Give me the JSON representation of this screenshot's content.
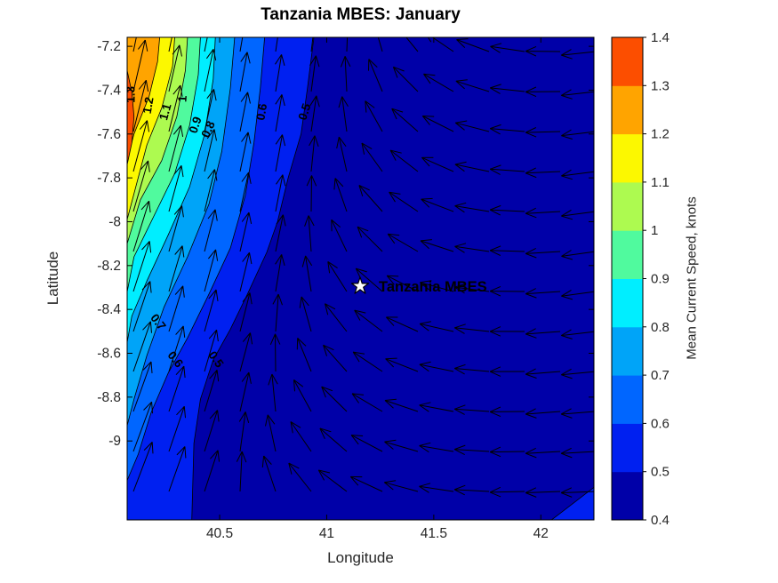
{
  "title": "Tanzania MBES: January",
  "axes": {
    "xlabel": "Longitude",
    "ylabel": "Latitude",
    "xlim": [
      40.068,
      42.248
    ],
    "ylim": [
      -9.36,
      -7.159
    ],
    "x_ticks": [
      {
        "value": 40.5,
        "label": "40.5"
      },
      {
        "value": 41,
        "label": "41"
      },
      {
        "value": 41.5,
        "label": "41.5"
      },
      {
        "value": 42,
        "label": "42"
      }
    ],
    "y_ticks": [
      {
        "value": -7.2,
        "label": "-7.2"
      },
      {
        "value": -7.4,
        "label": "-7.4"
      },
      {
        "value": -7.6,
        "label": "-7.6"
      },
      {
        "value": -7.8,
        "label": "-7.8"
      },
      {
        "value": -8,
        "label": "-8"
      },
      {
        "value": -8.2,
        "label": "-8.2"
      },
      {
        "value": -8.4,
        "label": "-8.4"
      },
      {
        "value": -8.6,
        "label": "-8.6"
      },
      {
        "value": -8.8,
        "label": "-8.8"
      },
      {
        "value": -9,
        "label": "-9"
      }
    ]
  },
  "colorbar": {
    "label": "Mean Current Speed, knots",
    "min": 0.4,
    "max": 1.4,
    "tick_labels": [
      "0.4",
      "0.5",
      "0.6",
      "0.7",
      "0.8",
      "0.9",
      "1",
      "1.1",
      "1.2",
      "1.3",
      "1.4"
    ],
    "band_colors": [
      "#0000A8",
      "#0020F0",
      "#0066FF",
      "#00A4F8",
      "#00EEFF",
      "#50FA9E",
      "#ADFA50",
      "#FCF800",
      "#FFA400",
      "#FC4E00"
    ]
  },
  "station": {
    "label": "Tanzania MBES",
    "lon": 41.156,
    "lat": -8.294
  },
  "chart_data": {
    "type": "filled_contour_with_quiver",
    "variable": "Mean Current Speed, knots",
    "month": "January",
    "base_level": 0.4,
    "base_color": "#0000A8",
    "bands": [
      {
        "level": 0.5,
        "color": "#0020F0",
        "line": [
          [
            40.94,
            -7.16
          ],
          [
            40.91,
            -7.39
          ],
          [
            40.88,
            -7.6
          ],
          [
            40.82,
            -7.8
          ],
          [
            40.77,
            -8.0
          ],
          [
            40.72,
            -8.14
          ],
          [
            40.63,
            -8.33
          ],
          [
            40.55,
            -8.49
          ],
          [
            40.47,
            -8.63
          ],
          [
            40.41,
            -8.81
          ],
          [
            40.38,
            -9.01
          ],
          [
            40.37,
            -9.36
          ]
        ],
        "close": [
          [
            40.068,
            -9.36
          ],
          [
            40.068,
            -7.159
          ]
        ]
      },
      {
        "level": 0.5,
        "color": "#0020F0",
        "line": [
          [
            42.05,
            -9.36
          ],
          [
            42.25,
            -9.21
          ]
        ],
        "close": [
          [
            42.25,
            -9.36
          ]
        ]
      },
      {
        "level": 0.6,
        "color": "#0066FF",
        "line": [
          [
            40.71,
            -7.16
          ],
          [
            40.69,
            -7.39
          ],
          [
            40.66,
            -7.64
          ],
          [
            40.62,
            -7.88
          ],
          [
            40.55,
            -8.12
          ],
          [
            40.45,
            -8.33
          ],
          [
            40.35,
            -8.53
          ],
          [
            40.26,
            -8.69
          ],
          [
            40.18,
            -8.87
          ],
          [
            40.12,
            -9.06
          ],
          [
            40.068,
            -9.18
          ]
        ],
        "close": [
          [
            40.068,
            -7.159
          ]
        ]
      },
      {
        "level": 0.7,
        "color": "#00A4F8",
        "line": [
          [
            40.57,
            -7.16
          ],
          [
            40.55,
            -7.39
          ],
          [
            40.51,
            -7.68
          ],
          [
            40.45,
            -7.92
          ],
          [
            40.35,
            -8.16
          ],
          [
            40.24,
            -8.39
          ],
          [
            40.16,
            -8.61
          ],
          [
            40.1,
            -8.81
          ],
          [
            40.068,
            -8.93
          ]
        ],
        "close": [
          [
            40.068,
            -7.159
          ]
        ]
      },
      {
        "level": 0.8,
        "color": "#00EEFF",
        "line": [
          [
            40.48,
            -7.16
          ],
          [
            40.47,
            -7.35
          ],
          [
            40.43,
            -7.6
          ],
          [
            40.36,
            -7.84
          ],
          [
            40.26,
            -8.06
          ],
          [
            40.16,
            -8.27
          ],
          [
            40.09,
            -8.43
          ],
          [
            40.068,
            -8.55
          ]
        ],
        "close": [
          [
            40.068,
            -7.159
          ]
        ]
      },
      {
        "level": 0.9,
        "color": "#50FA9E",
        "line": [
          [
            40.41,
            -7.16
          ],
          [
            40.4,
            -7.33
          ],
          [
            40.36,
            -7.56
          ],
          [
            40.29,
            -7.78
          ],
          [
            40.19,
            -7.98
          ],
          [
            40.1,
            -8.16
          ],
          [
            40.068,
            -8.32
          ]
        ],
        "close": [
          [
            40.068,
            -7.159
          ]
        ]
      },
      {
        "level": 1.0,
        "color": "#ADFA50",
        "line": [
          [
            40.35,
            -7.16
          ],
          [
            40.34,
            -7.31
          ],
          [
            40.3,
            -7.52
          ],
          [
            40.23,
            -7.72
          ],
          [
            40.13,
            -7.9
          ],
          [
            40.068,
            -8.1
          ]
        ],
        "close": [
          [
            40.068,
            -7.159
          ]
        ]
      },
      {
        "level": 1.1,
        "color": "#FCF800",
        "line": [
          [
            40.29,
            -7.16
          ],
          [
            40.28,
            -7.29
          ],
          [
            40.23,
            -7.48
          ],
          [
            40.16,
            -7.65
          ],
          [
            40.068,
            -7.99
          ]
        ],
        "close": [
          [
            40.068,
            -7.159
          ]
        ]
      },
      {
        "level": 1.2,
        "color": "#FFA400",
        "line": [
          [
            40.22,
            -7.16
          ],
          [
            40.21,
            -7.27
          ],
          [
            40.17,
            -7.43
          ],
          [
            40.1,
            -7.6
          ],
          [
            40.068,
            -7.72
          ]
        ],
        "close": [
          [
            40.068,
            -7.159
          ]
        ]
      },
      {
        "level": 1.3,
        "color": "#FC4E00",
        "line": [
          [
            40.068,
            -7.31
          ],
          [
            40.09,
            -7.41
          ],
          [
            40.1,
            -7.52
          ],
          [
            40.09,
            -7.64
          ],
          [
            40.068,
            -7.74
          ]
        ],
        "close": []
      }
    ],
    "contour_labels": [
      {
        "text": "1.3",
        "lon": 40.089,
        "lat": -7.42,
        "rot": -90
      },
      {
        "text": "1.2",
        "lon": 40.17,
        "lat": -7.47,
        "rot": -80
      },
      {
        "text": "1.1",
        "lon": 40.25,
        "lat": -7.5,
        "rot": -75
      },
      {
        "text": "1",
        "lon": 40.33,
        "lat": -7.44,
        "rot": -86
      },
      {
        "text": "0.9",
        "lon": 40.39,
        "lat": -7.56,
        "rot": -72
      },
      {
        "text": "0.8",
        "lon": 40.45,
        "lat": -7.58,
        "rot": -66
      },
      {
        "text": "0.6",
        "lon": 40.7,
        "lat": -7.5,
        "rot": -80
      },
      {
        "text": "0.5",
        "lon": 40.9,
        "lat": -7.5,
        "rot": -72
      },
      {
        "text": "0.7",
        "lon": 40.21,
        "lat": -8.46,
        "rot": 52
      },
      {
        "text": "0.6",
        "lon": 40.29,
        "lat": -8.63,
        "rot": 52
      },
      {
        "text": "0.5",
        "lon": 40.48,
        "lat": -8.63,
        "rot": 55
      }
    ],
    "quiver": {
      "lon0": 40.097,
      "dlon": 0.1661,
      "n_lon": 14,
      "lat0": -7.224,
      "dlat": -0.1824,
      "n_lat": 12,
      "angle_deg_by_lon": [
        [
          40.05,
          72
        ],
        [
          40.75,
          78
        ],
        [
          40.95,
          100
        ],
        [
          41.15,
          128
        ],
        [
          41.4,
          150
        ],
        [
          41.65,
          168
        ],
        [
          41.95,
          180
        ],
        [
          42.25,
          188
        ]
      ],
      "speed_by_lon": [
        [
          40.07,
          1.25
        ],
        [
          40.25,
          1.0
        ],
        [
          40.5,
          0.72
        ],
        [
          40.75,
          0.55
        ],
        [
          41.0,
          0.46
        ],
        [
          41.5,
          0.42
        ],
        [
          42.25,
          0.42
        ]
      ],
      "turn_skew_per_deg_lat": 0.3,
      "tilt_deg_per_deg_lat": 6,
      "lat_mid": -8.26
    }
  }
}
